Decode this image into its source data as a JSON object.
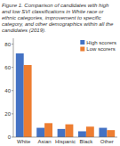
{
  "chart_data": {
    "type": "bar",
    "title": "Figure 1. Comparison of candidates with high and low SVI classifications in White race or ethnic categories, improvement to specific category, and other demographics within all the candidates (2019).",
    "categories": [
      "White",
      "Asian",
      "Hispanic",
      "Black",
      "Other"
    ],
    "series": [
      {
        "name": "High scorers",
        "color": "#4472c4",
        "values": [
          72,
          8,
          7,
          5,
          8
        ]
      },
      {
        "name": "Low scorers",
        "color": "#ed7d31",
        "values": [
          62,
          12,
          11,
          9,
          6
        ]
      }
    ],
    "ylim": [
      0,
      85
    ],
    "yticks": [
      0,
      20,
      40,
      60,
      80
    ],
    "legend": "upper right"
  }
}
